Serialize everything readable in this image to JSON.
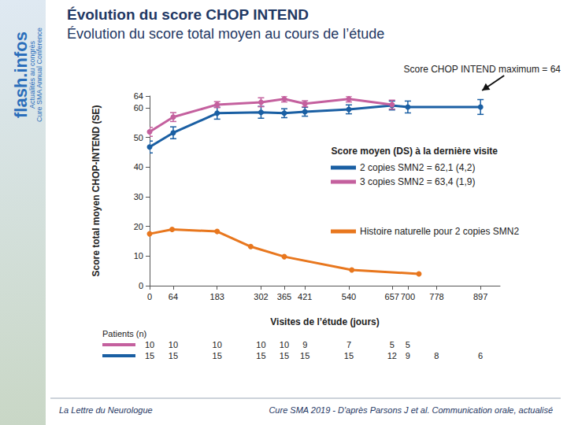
{
  "chart_data": {
    "type": "line",
    "title": "Évolution du score CHOP INTEND",
    "subtitle": "Évolution du score total moyen au cours de l’étude",
    "xlabel": "Visites de l’étude (jours)",
    "ylabel": "Score total moyen CHOP-INTEND (SE)",
    "xlim": [
      0,
      950
    ],
    "xticks": [
      0,
      64,
      183,
      302,
      365,
      421,
      540,
      657,
      700,
      778,
      897
    ],
    "ylim": [
      0,
      64
    ],
    "yticks": [
      0,
      10,
      20,
      30,
      40,
      50,
      60,
      64
    ],
    "grid": false,
    "legend": "right",
    "annotations": [
      "Score moyen (DS) à la dernière visite",
      "Score CHOP INTEND maximum = 64"
    ],
    "series": [
      {
        "name": "2 copies SMN2 = 62,1 (4,2)",
        "color": "#1a5fa3",
        "marker": "circle",
        "x": [
          0,
          64,
          183,
          302,
          365,
          421,
          540,
          657,
          700,
          897
        ],
        "values": [
          46.8,
          51.6,
          58.2,
          58.5,
          58.2,
          58.7,
          59.5,
          60.8,
          60.3,
          60.3
        ],
        "errors": [
          2.0,
          2.0,
          2.0,
          2.0,
          1.5,
          1.5,
          1.5,
          1.5,
          2.0,
          2.5
        ]
      },
      {
        "name": "3 copies SMN2 = 63,4 (1,9)",
        "color": "#c4609e",
        "marker": "circle",
        "x": [
          0,
          64,
          183,
          302,
          365,
          421,
          540,
          657
        ],
        "values": [
          51.9,
          56.9,
          61.1,
          61.9,
          63.0,
          61.4,
          63.0,
          61.1
        ],
        "errors": [
          1.5,
          1.5,
          1.0,
          1.5,
          1.0,
          1.0,
          1.0,
          1.5
        ]
      },
      {
        "name": "Histoire naturelle pour 2 copies SMN2",
        "color": "#e8771e",
        "marker": "circle",
        "x": [
          0,
          61,
          183,
          274,
          365,
          548,
          730
        ],
        "values": [
          17.5,
          19.0,
          18.3,
          13.2,
          9.8,
          5.3,
          4.0
        ]
      }
    ],
    "patients": {
      "label": "Patients (n)",
      "x": [
        0,
        64,
        183,
        302,
        365,
        421,
        540,
        657,
        700,
        778,
        897
      ],
      "series": [
        {
          "color": "#c4609e",
          "values": [
            10,
            10,
            10,
            10,
            10,
            9,
            7,
            5,
            5,
            null,
            null
          ]
        },
        {
          "color": "#1a5fa3",
          "values": [
            15,
            15,
            15,
            15,
            15,
            15,
            15,
            12,
            9,
            8,
            6
          ]
        }
      ]
    }
  },
  "sidebar": [
    "flash.infos",
    "Actualités au congrès",
    "Cure SMA Annual Conference"
  ],
  "footer": [
    "La Lettre du Neurologue",
    "Cure SMA 2019 - D'après Parsons J et al. Communication orale, actualisé"
  ]
}
